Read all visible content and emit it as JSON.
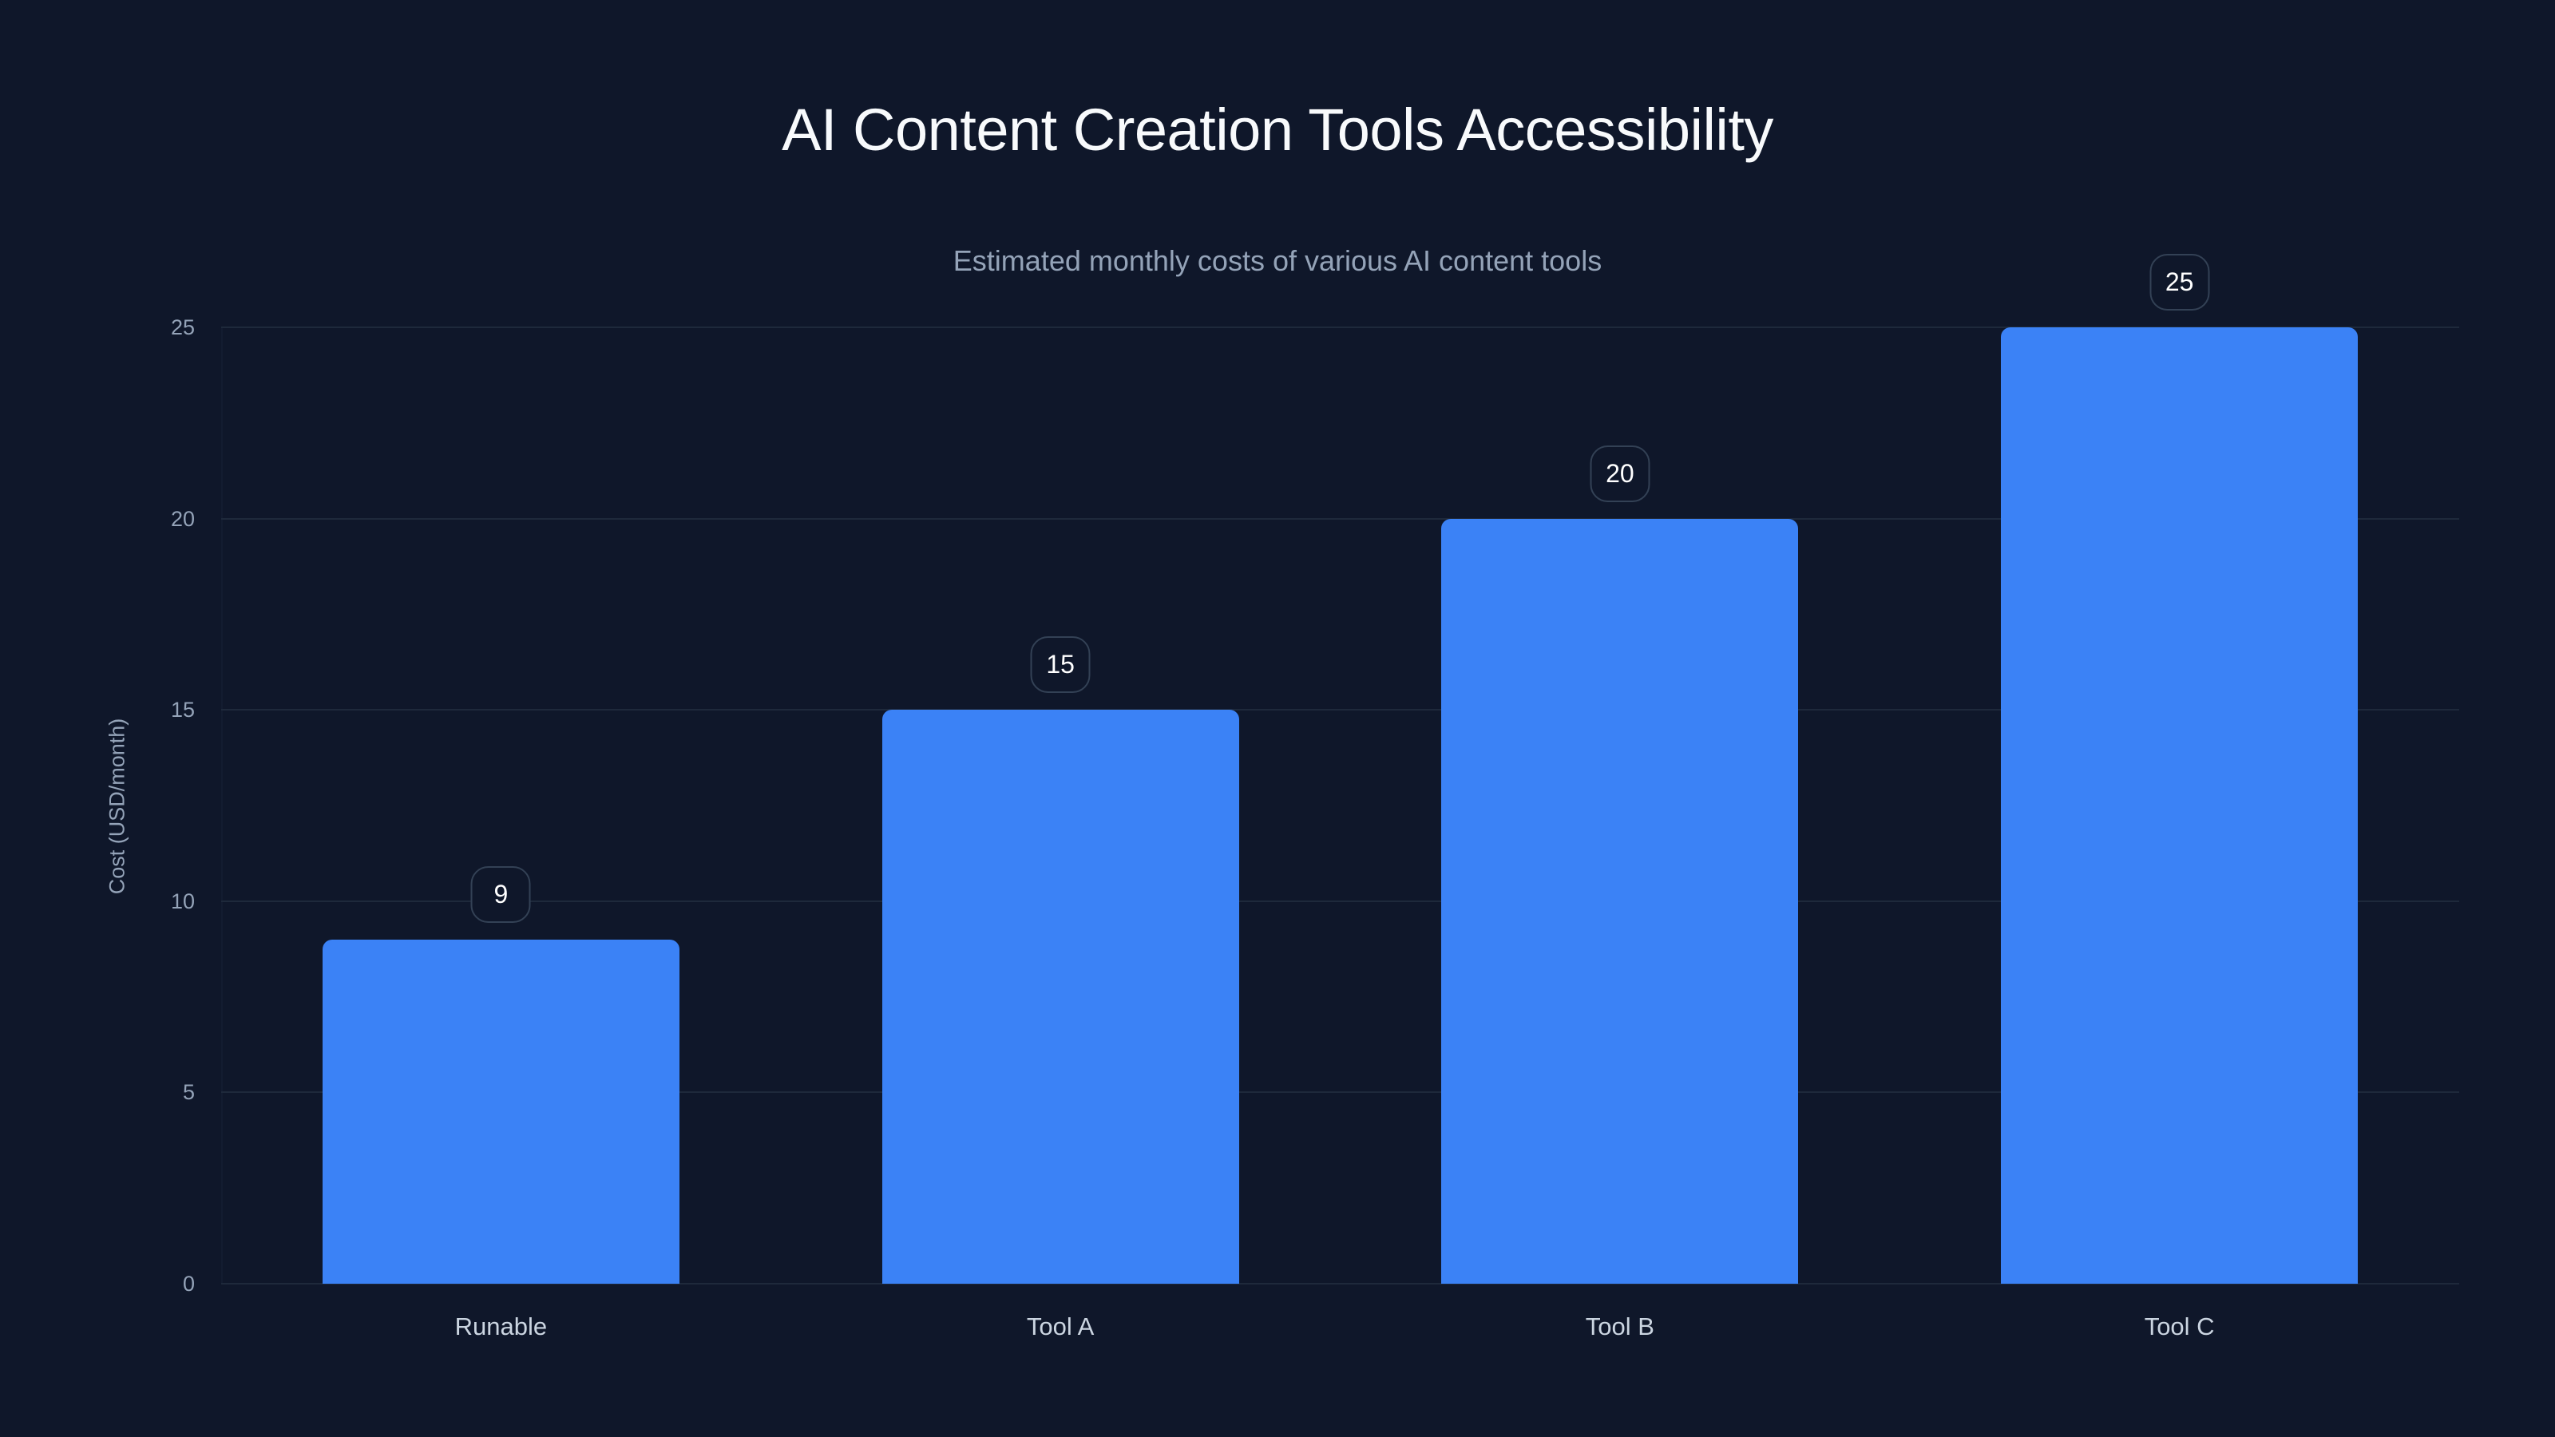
{
  "header": {
    "title": "AI Content Creation Tools Accessibility",
    "subtitle": "Estimated monthly costs of various AI content tools"
  },
  "colors": {
    "background": "#0f172a",
    "bar": "#3b82f6",
    "grid": "#1e293b",
    "label_border": "#334155",
    "tick_text": "#94a3b8",
    "category_text": "#cbd5e1",
    "title_text": "#f8fafc"
  },
  "axes": {
    "y_label": "Cost (USD/month)",
    "y_ticks": [
      "0",
      "5",
      "10",
      "15",
      "20",
      "25"
    ]
  },
  "bars": [
    {
      "label": "Runable",
      "value": "9"
    },
    {
      "label": "Tool A",
      "value": "15"
    },
    {
      "label": "Tool B",
      "value": "20"
    },
    {
      "label": "Tool C",
      "value": "25"
    }
  ],
  "chart_data": {
    "type": "bar",
    "title": "AI Content Creation Tools Accessibility",
    "subtitle": "Estimated monthly costs of various AI content tools",
    "categories": [
      "Runable",
      "Tool A",
      "Tool B",
      "Tool C"
    ],
    "values": [
      9,
      15,
      20,
      25
    ],
    "xlabel": "",
    "ylabel": "Cost (USD/month)",
    "ylim": [
      0,
      25
    ],
    "yticks": [
      0,
      5,
      10,
      15,
      20,
      25
    ],
    "grid": true,
    "legend": null,
    "data_labels": true
  }
}
